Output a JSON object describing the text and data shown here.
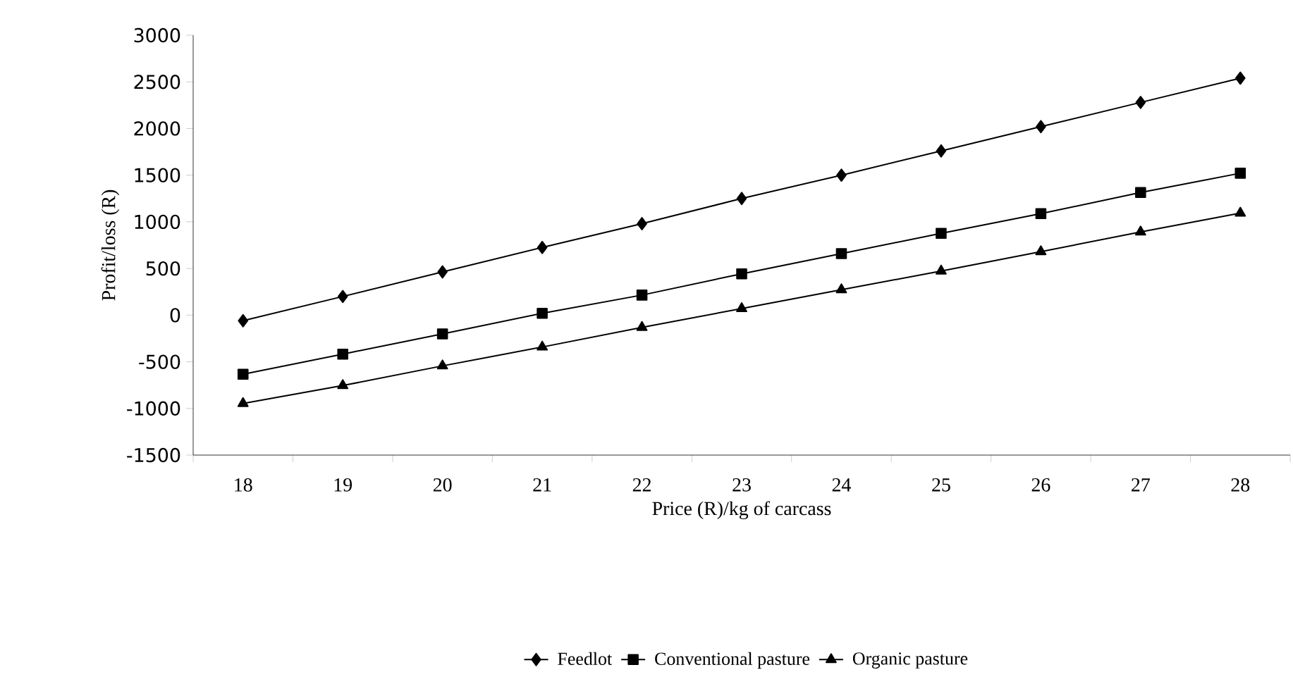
{
  "chart_data": {
    "type": "line",
    "xlabel": "Price (R)/kg of carcass",
    "ylabel": "Profit/loss (R)",
    "categories": [
      "18",
      "19",
      "20",
      "21",
      "22",
      "23",
      "24",
      "25",
      "26",
      "27",
      "28"
    ],
    "ylim": [
      -1500,
      3000
    ],
    "yticks": [
      -1500,
      -1000,
      -500,
      0,
      500,
      1000,
      1500,
      2000,
      2500,
      3000
    ],
    "legend": "bottom",
    "line_style": "solid",
    "series": [
      {
        "name": "Feedlot",
        "color": "#000000",
        "marker": "diamond",
        "values": [
          -60,
          200,
          463,
          725,
          980,
          1250,
          1500,
          1760,
          2020,
          2280,
          2540
        ]
      },
      {
        "name": "Conventional pasture",
        "color": "#000000",
        "marker": "square",
        "values": [
          -634,
          -418,
          -201,
          20,
          215,
          443,
          660,
          876,
          1088,
          1314,
          1521
        ]
      },
      {
        "name": "Organic pasture",
        "color": "#000000",
        "marker": "triangle",
        "values": [
          -947,
          -755,
          -544,
          -342,
          -131,
          70,
          272,
          473,
          680,
          891,
          1093
        ]
      }
    ]
  }
}
